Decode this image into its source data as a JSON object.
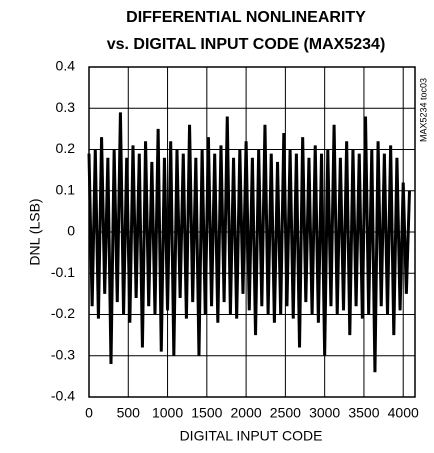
{
  "chart_data": {
    "type": "line",
    "title": [
      "DIFFERENTIAL NONLINEARITY",
      "vs. DIGITAL INPUT CODE (MAX5234)"
    ],
    "x_label": "DIGITAL INPUT CODE",
    "y_label": "DNL (LSB)",
    "annotation": "MAX5234 toc03",
    "x": [
      0,
      40,
      80,
      120,
      160,
      200,
      240,
      280,
      320,
      360,
      400,
      440,
      480,
      520,
      560,
      600,
      640,
      680,
      720,
      760,
      800,
      840,
      880,
      920,
      960,
      1000,
      1040,
      1080,
      1120,
      1160,
      1200,
      1240,
      1280,
      1320,
      1360,
      1400,
      1440,
      1480,
      1520,
      1560,
      1600,
      1640,
      1680,
      1720,
      1760,
      1800,
      1840,
      1880,
      1920,
      1960,
      2000,
      2040,
      2080,
      2120,
      2160,
      2200,
      2240,
      2280,
      2320,
      2360,
      2400,
      2440,
      2480,
      2520,
      2560,
      2600,
      2640,
      2680,
      2720,
      2760,
      2800,
      2840,
      2880,
      2920,
      2960,
      3000,
      3040,
      3080,
      3120,
      3160,
      3200,
      3240,
      3280,
      3320,
      3360,
      3400,
      3440,
      3480,
      3520,
      3560,
      3600,
      3640,
      3680,
      3720,
      3760,
      3800,
      3840,
      3880,
      3920,
      3960,
      4000,
      4040,
      4080
    ],
    "series": [
      {
        "name": "DNL",
        "color": "#000000",
        "values": [
          0.19,
          -0.18,
          0.2,
          -0.21,
          0.23,
          -0.15,
          0.18,
          -0.32,
          0.2,
          -0.17,
          0.29,
          -0.2,
          0.18,
          -0.22,
          0.21,
          -0.16,
          0.19,
          -0.28,
          0.22,
          -0.18,
          0.17,
          -0.2,
          0.25,
          -0.29,
          0.18,
          -0.19,
          0.22,
          -0.3,
          0.2,
          -0.16,
          0.19,
          -0.21,
          0.26,
          -0.17,
          0.18,
          -0.3,
          0.2,
          -0.2,
          0.23,
          -0.18,
          0.19,
          -0.22,
          0.21,
          -0.17,
          0.28,
          -0.2,
          0.18,
          -0.21,
          0.2,
          -0.15,
          0.22,
          -0.19,
          0.18,
          -0.25,
          0.2,
          -0.18,
          0.26,
          -0.2,
          0.19,
          -0.22,
          0.17,
          -0.2,
          0.24,
          -0.18,
          0.2,
          -0.21,
          0.19,
          -0.28,
          0.23,
          -0.17,
          0.18,
          -0.2,
          0.21,
          -0.22,
          0.19,
          -0.3,
          0.2,
          -0.18,
          0.26,
          -0.2,
          0.18,
          -0.19,
          0.22,
          -0.25,
          0.2,
          -0.18,
          0.19,
          -0.21,
          0.28,
          -0.2,
          0.2,
          -0.34,
          0.22,
          -0.18,
          0.19,
          -0.2,
          0.21,
          -0.25,
          0.18,
          -0.19,
          0.12,
          -0.15,
          0.1
        ]
      }
    ],
    "xlim": [
      0,
      4150
    ],
    "xticks": [
      0,
      500,
      1000,
      1500,
      2000,
      2500,
      3000,
      3500,
      4000
    ],
    "ylim": [
      -0.4,
      0.4
    ],
    "yticks": [
      0.4,
      0.3,
      0.2,
      0.1,
      0,
      -0.1,
      -0.2,
      -0.3,
      -0.4
    ],
    "grid": true
  }
}
